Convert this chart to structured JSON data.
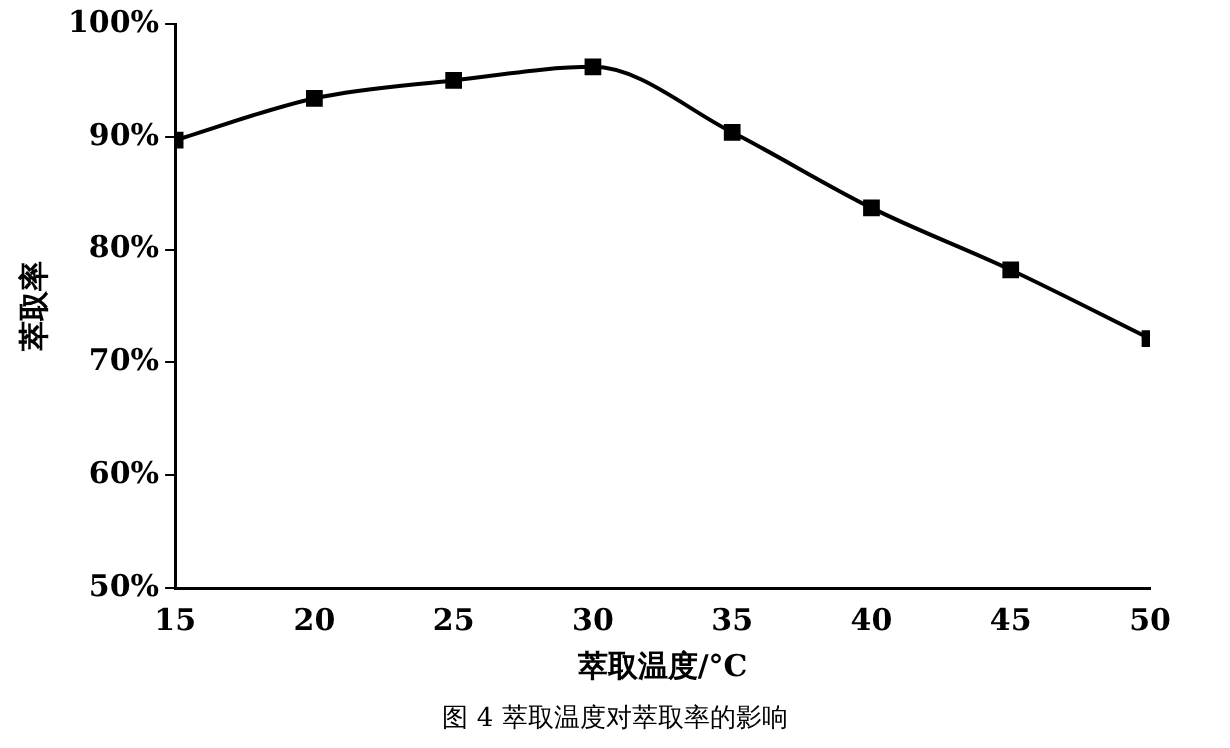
{
  "chart_data": {
    "type": "line",
    "xlabel": "萃取温度/°C",
    "ylabel": "萃取率",
    "x": [
      15,
      20,
      25,
      30,
      35,
      40,
      45,
      50
    ],
    "series": [
      {
        "color": "#000000",
        "values": [
          89.7,
          93.4,
          95.0,
          96.2,
          90.4,
          83.7,
          78.2,
          72.1
        ]
      }
    ],
    "xlim": [
      15,
      50
    ],
    "xticks": [
      15,
      20,
      25,
      30,
      35,
      40,
      45,
      50
    ],
    "ylim": [
      50,
      100
    ],
    "yticks": [
      {
        "value": 50,
        "label": "50%"
      },
      {
        "value": 60,
        "label": "60%"
      },
      {
        "value": 70,
        "label": "70%"
      },
      {
        "value": 80,
        "label": "80%"
      },
      {
        "value": 90,
        "label": "90%"
      },
      {
        "value": 100,
        "label": "100%"
      }
    ],
    "annotations": [
      "图 4 萃取温度对萃取率的影响"
    ],
    "grid": false,
    "legend": false,
    "marker": "square",
    "line_style": "solid"
  }
}
